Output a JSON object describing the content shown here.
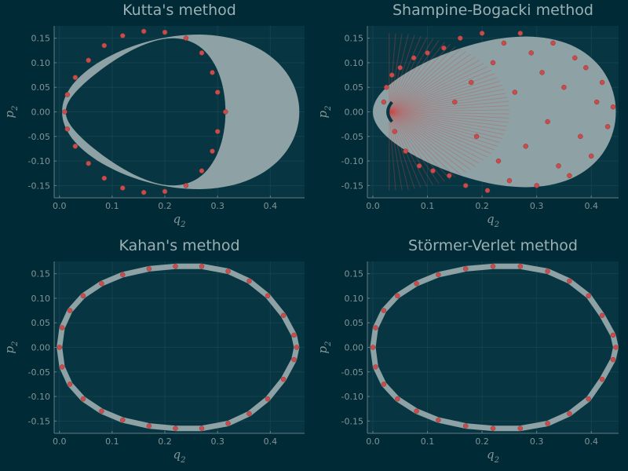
{
  "figure": {
    "background": "#002b36",
    "plot_background": "#073642",
    "band_color": "#8ea2a5",
    "marker_color": "#cb4b4b"
  },
  "chart_data": [
    {
      "type": "scatter",
      "title": "Kutta's method",
      "xlabel": "q",
      "xlabel_sub": "2",
      "ylabel": "p",
      "ylabel_sub": "2",
      "xlim": [
        -0.01,
        0.465
      ],
      "ylim": [
        -0.175,
        0.175
      ],
      "xticks": [
        0.0,
        0.1,
        0.2,
        0.3,
        0.4
      ],
      "xtick_labels": [
        "0.0",
        "0.1",
        "0.2",
        "0.3",
        "0.4"
      ],
      "yticks": [
        -0.15,
        -0.1,
        -0.05,
        0.0,
        0.05,
        0.1,
        0.15
      ],
      "ytick_labels": [
        "-0.15",
        "-0.10",
        "-0.05",
        "0.00",
        "0.05",
        "0.10",
        "0.15"
      ],
      "grid": true,
      "band": {
        "q_min": 0.005,
        "q_max": 0.455,
        "p_max": 0.165,
        "inner_q_max": 0.315
      },
      "series": [
        {
          "marker": "circle",
          "points": [
            [
              0.01,
              0.0
            ],
            [
              0.015,
              0.035
            ],
            [
              0.03,
              0.07
            ],
            [
              0.055,
              0.105
            ],
            [
              0.085,
              0.135
            ],
            [
              0.12,
              0.155
            ],
            [
              0.16,
              0.164
            ],
            [
              0.2,
              0.162
            ],
            [
              0.24,
              0.15
            ],
            [
              0.27,
              0.12
            ],
            [
              0.29,
              0.08
            ],
            [
              0.3,
              0.04
            ],
            [
              0.315,
              0.0
            ],
            [
              0.3,
              -0.04
            ],
            [
              0.29,
              -0.08
            ],
            [
              0.27,
              -0.12
            ],
            [
              0.24,
              -0.15
            ],
            [
              0.2,
              -0.162
            ],
            [
              0.16,
              -0.164
            ],
            [
              0.12,
              -0.155
            ],
            [
              0.085,
              -0.135
            ],
            [
              0.055,
              -0.105
            ],
            [
              0.03,
              -0.07
            ],
            [
              0.015,
              -0.035
            ]
          ]
        }
      ]
    },
    {
      "type": "scatter",
      "title": "Shampine-Bogacki method",
      "xlabel": "q",
      "xlabel_sub": "2",
      "ylabel": "p",
      "ylabel_sub": "2",
      "xlim": [
        -0.01,
        0.45
      ],
      "ylim": [
        -0.175,
        0.175
      ],
      "xticks": [
        0.0,
        0.1,
        0.2,
        0.3,
        0.4
      ],
      "xtick_labels": [
        "0.0",
        "0.1",
        "0.2",
        "0.3",
        "0.4"
      ],
      "yticks": [
        -0.15,
        -0.1,
        -0.05,
        0.0,
        0.05,
        0.1,
        0.15
      ],
      "ytick_labels": [
        "-0.15",
        "-0.10",
        "-0.05",
        "0.00",
        "0.05",
        "0.10",
        "0.15"
      ],
      "grid": true,
      "band": {
        "q_min": 0.0,
        "q_max": 0.445,
        "p_max": 0.165
      },
      "series": [
        {
          "marker": "circle",
          "points": [
            [
              0.02,
              0.02
            ],
            [
              0.025,
              0.05
            ],
            [
              0.035,
              0.075
            ],
            [
              0.04,
              -0.04
            ],
            [
              0.05,
              0.09
            ],
            [
              0.06,
              -0.08
            ],
            [
              0.075,
              0.11
            ],
            [
              0.085,
              -0.11
            ],
            [
              0.1,
              0.12
            ],
            [
              0.11,
              -0.12
            ],
            [
              0.13,
              0.13
            ],
            [
              0.14,
              -0.13
            ],
            [
              0.15,
              0.02
            ],
            [
              0.16,
              0.15
            ],
            [
              0.17,
              -0.15
            ],
            [
              0.18,
              0.06
            ],
            [
              0.19,
              -0.05
            ],
            [
              0.2,
              0.16
            ],
            [
              0.21,
              -0.16
            ],
            [
              0.22,
              0.1
            ],
            [
              0.23,
              -0.1
            ],
            [
              0.24,
              0.14
            ],
            [
              0.25,
              -0.14
            ],
            [
              0.26,
              0.04
            ],
            [
              0.27,
              0.16
            ],
            [
              0.28,
              -0.07
            ],
            [
              0.29,
              0.12
            ],
            [
              0.3,
              -0.15
            ],
            [
              0.31,
              0.08
            ],
            [
              0.32,
              -0.02
            ],
            [
              0.33,
              0.14
            ],
            [
              0.34,
              -0.11
            ],
            [
              0.35,
              0.05
            ],
            [
              0.36,
              -0.13
            ],
            [
              0.37,
              0.11
            ],
            [
              0.38,
              -0.05
            ],
            [
              0.39,
              0.09
            ],
            [
              0.4,
              -0.09
            ],
            [
              0.41,
              0.02
            ],
            [
              0.42,
              0.06
            ],
            [
              0.43,
              -0.03
            ],
            [
              0.44,
              0.01
            ]
          ]
        }
      ]
    },
    {
      "type": "scatter",
      "title": "Kahan's method",
      "xlabel": "q",
      "xlabel_sub": "2",
      "ylabel": "p",
      "ylabel_sub": "2",
      "xlim": [
        -0.01,
        0.465
      ],
      "ylim": [
        -0.175,
        0.175
      ],
      "xticks": [
        0.0,
        0.1,
        0.2,
        0.3,
        0.4
      ],
      "xtick_labels": [
        "0.0",
        "0.1",
        "0.2",
        "0.3",
        "0.4"
      ],
      "yticks": [
        -0.15,
        -0.1,
        -0.05,
        0.0,
        0.05,
        0.1,
        0.15
      ],
      "ytick_labels": [
        "-0.15",
        "-0.10",
        "-0.05",
        "0.00",
        "0.05",
        "0.10",
        "0.15"
      ],
      "grid": true,
      "series": [
        {
          "marker": "circle",
          "points": [
            [
              0.0,
              0.0
            ],
            [
              0.005,
              0.04
            ],
            [
              0.02,
              0.075
            ],
            [
              0.045,
              0.105
            ],
            [
              0.08,
              0.13
            ],
            [
              0.12,
              0.148
            ],
            [
              0.17,
              0.16
            ],
            [
              0.22,
              0.165
            ],
            [
              0.27,
              0.165
            ],
            [
              0.32,
              0.155
            ],
            [
              0.36,
              0.135
            ],
            [
              0.395,
              0.105
            ],
            [
              0.425,
              0.065
            ],
            [
              0.445,
              0.025
            ],
            [
              0.45,
              0.0
            ],
            [
              0.445,
              -0.025
            ],
            [
              0.425,
              -0.065
            ],
            [
              0.395,
              -0.105
            ],
            [
              0.36,
              -0.135
            ],
            [
              0.32,
              -0.155
            ],
            [
              0.27,
              -0.165
            ],
            [
              0.22,
              -0.165
            ],
            [
              0.17,
              -0.16
            ],
            [
              0.12,
              -0.148
            ],
            [
              0.08,
              -0.13
            ],
            [
              0.045,
              -0.105
            ],
            [
              0.02,
              -0.075
            ],
            [
              0.005,
              -0.04
            ]
          ]
        }
      ]
    },
    {
      "type": "scatter",
      "title": "Störmer-Verlet method",
      "xlabel": "q",
      "xlabel_sub": "2",
      "ylabel": "p",
      "ylabel_sub": "2",
      "xlim": [
        -0.01,
        0.45
      ],
      "ylim": [
        -0.175,
        0.175
      ],
      "xticks": [
        0.0,
        0.1,
        0.2,
        0.3,
        0.4
      ],
      "xtick_labels": [
        "0.0",
        "0.1",
        "0.2",
        "0.3",
        "0.4"
      ],
      "yticks": [
        -0.15,
        -0.1,
        -0.05,
        0.0,
        0.05,
        0.1,
        0.15
      ],
      "ytick_labels": [
        "-0.15",
        "-0.10",
        "-0.05",
        "0.00",
        "0.05",
        "0.10",
        "0.15"
      ],
      "grid": true,
      "series": [
        {
          "marker": "circle",
          "points": [
            [
              0.0,
              0.0
            ],
            [
              0.005,
              0.04
            ],
            [
              0.02,
              0.075
            ],
            [
              0.045,
              0.105
            ],
            [
              0.08,
              0.13
            ],
            [
              0.12,
              0.148
            ],
            [
              0.17,
              0.16
            ],
            [
              0.22,
              0.165
            ],
            [
              0.27,
              0.165
            ],
            [
              0.32,
              0.155
            ],
            [
              0.36,
              0.135
            ],
            [
              0.395,
              0.105
            ],
            [
              0.42,
              0.065
            ],
            [
              0.44,
              0.025
            ],
            [
              0.445,
              0.0
            ],
            [
              0.44,
              -0.025
            ],
            [
              0.42,
              -0.065
            ],
            [
              0.395,
              -0.105
            ],
            [
              0.36,
              -0.135
            ],
            [
              0.32,
              -0.155
            ],
            [
              0.27,
              -0.165
            ],
            [
              0.22,
              -0.165
            ],
            [
              0.17,
              -0.16
            ],
            [
              0.12,
              -0.148
            ],
            [
              0.08,
              -0.13
            ],
            [
              0.045,
              -0.105
            ],
            [
              0.02,
              -0.075
            ],
            [
              0.005,
              -0.04
            ]
          ]
        }
      ]
    }
  ]
}
